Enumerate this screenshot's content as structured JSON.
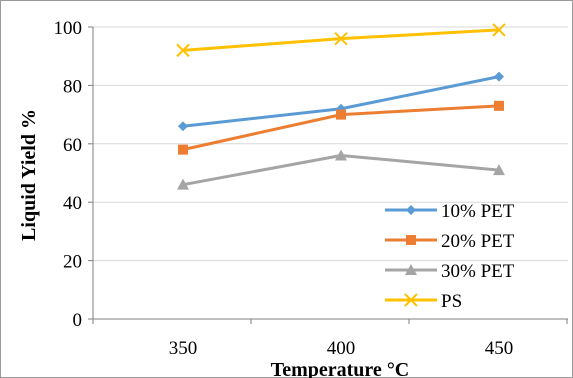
{
  "chart_data": {
    "type": "line",
    "title": "",
    "xlabel": "Temperature °C",
    "ylabel": "Liquid Yield %",
    "categories": [
      "350",
      "400",
      "450"
    ],
    "ylim": [
      0,
      100
    ],
    "yticks": [
      0,
      20,
      40,
      60,
      80,
      100
    ],
    "grid": "horizontal",
    "legend_position": "bottom-right",
    "series": [
      {
        "name": "10% PET",
        "values": [
          66,
          72,
          83
        ],
        "color": "#5B9BD5",
        "marker": "diamond"
      },
      {
        "name": "20% PET",
        "values": [
          58,
          70,
          73
        ],
        "color": "#ED7D31",
        "marker": "square"
      },
      {
        "name": "30% PET",
        "values": [
          46,
          56,
          51
        ],
        "color": "#A5A5A5",
        "marker": "triangle"
      },
      {
        "name": "PS",
        "values": [
          92,
          96,
          99
        ],
        "color": "#FFC000",
        "marker": "x"
      }
    ]
  }
}
